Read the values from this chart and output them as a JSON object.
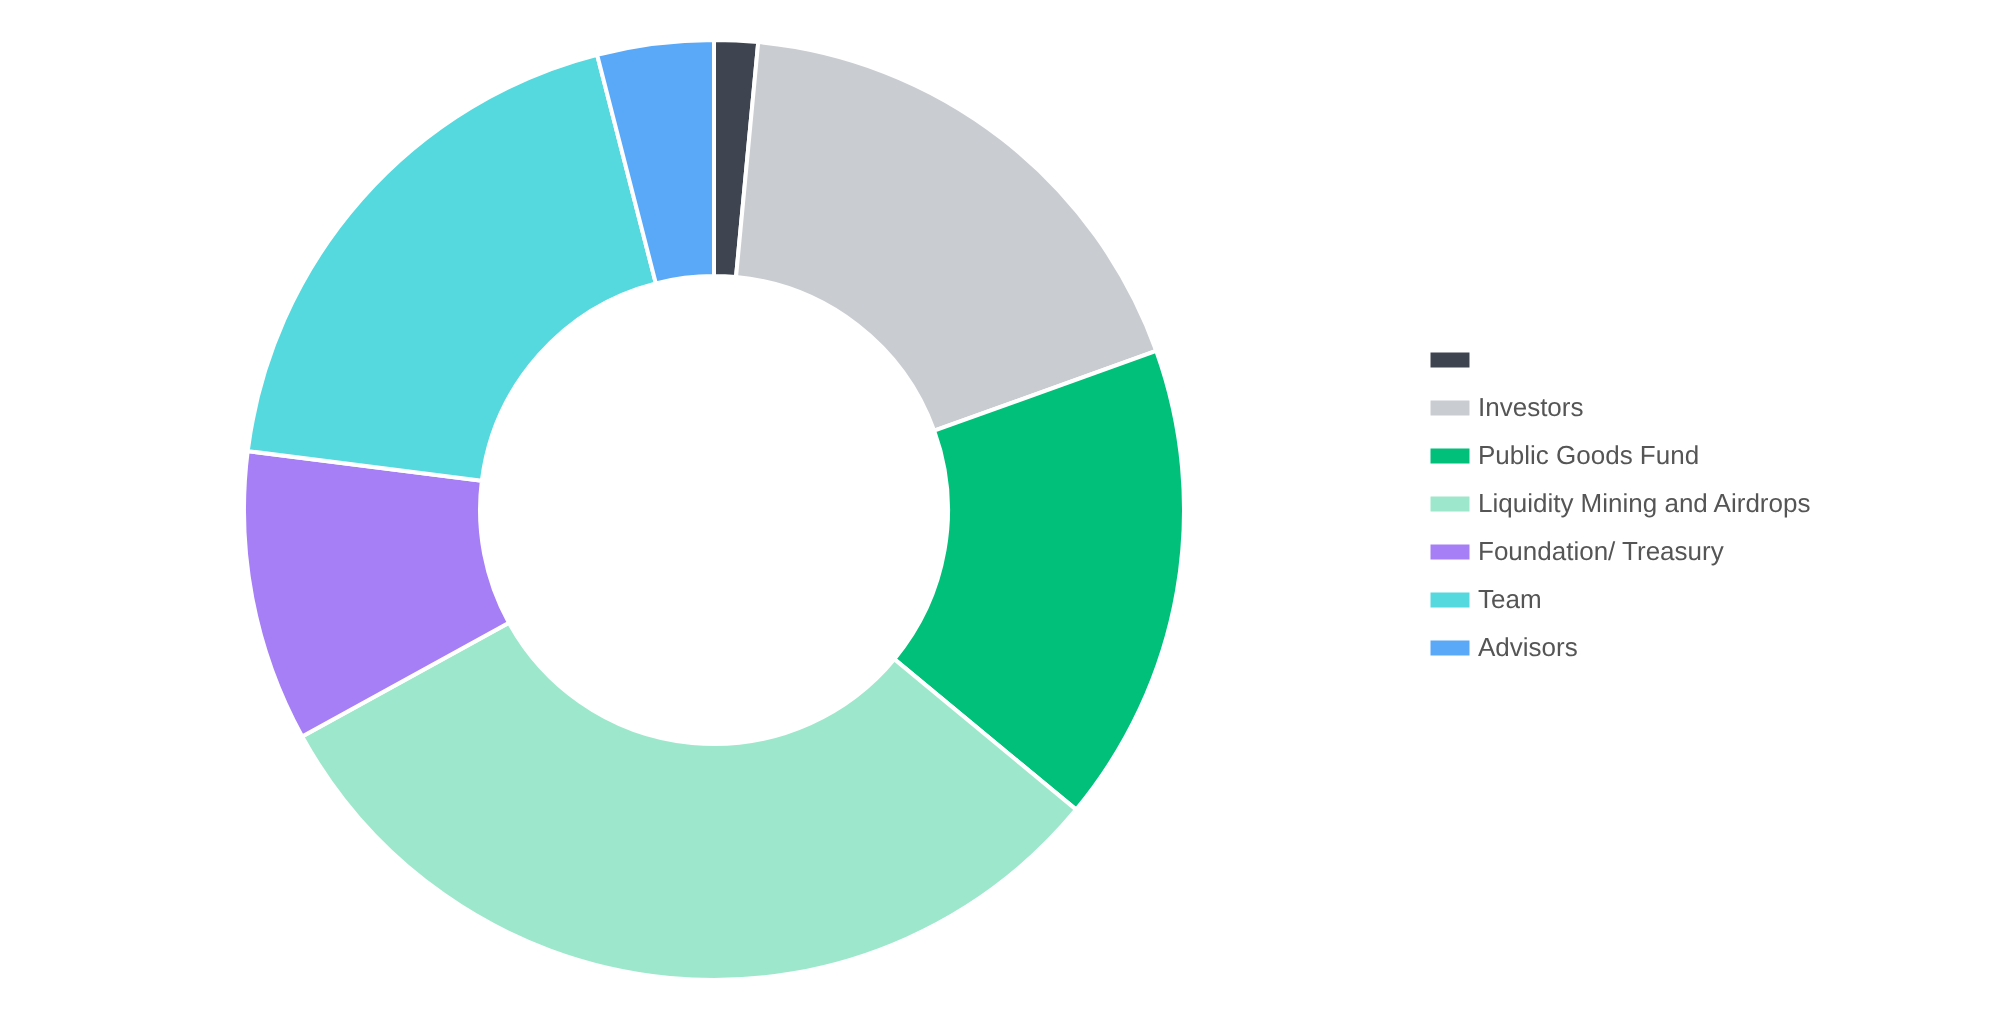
{
  "chart_data": {
    "type": "donut",
    "categories": [
      null,
      "Investors",
      "Public Goods Fund",
      "Liquidity Mining and Airdrops",
      "Foundation/ Treasury",
      "Team",
      "Advisors"
    ],
    "values": [
      1.5,
      18,
      16.5,
      31,
      10,
      19,
      4
    ],
    "colors": [
      "#3f4550",
      "#c9ccd1",
      "#00c07a",
      "#9de8cc",
      "#a67ef5",
      "#55d9df",
      "#5aa9f8"
    ],
    "legend": "right"
  }
}
